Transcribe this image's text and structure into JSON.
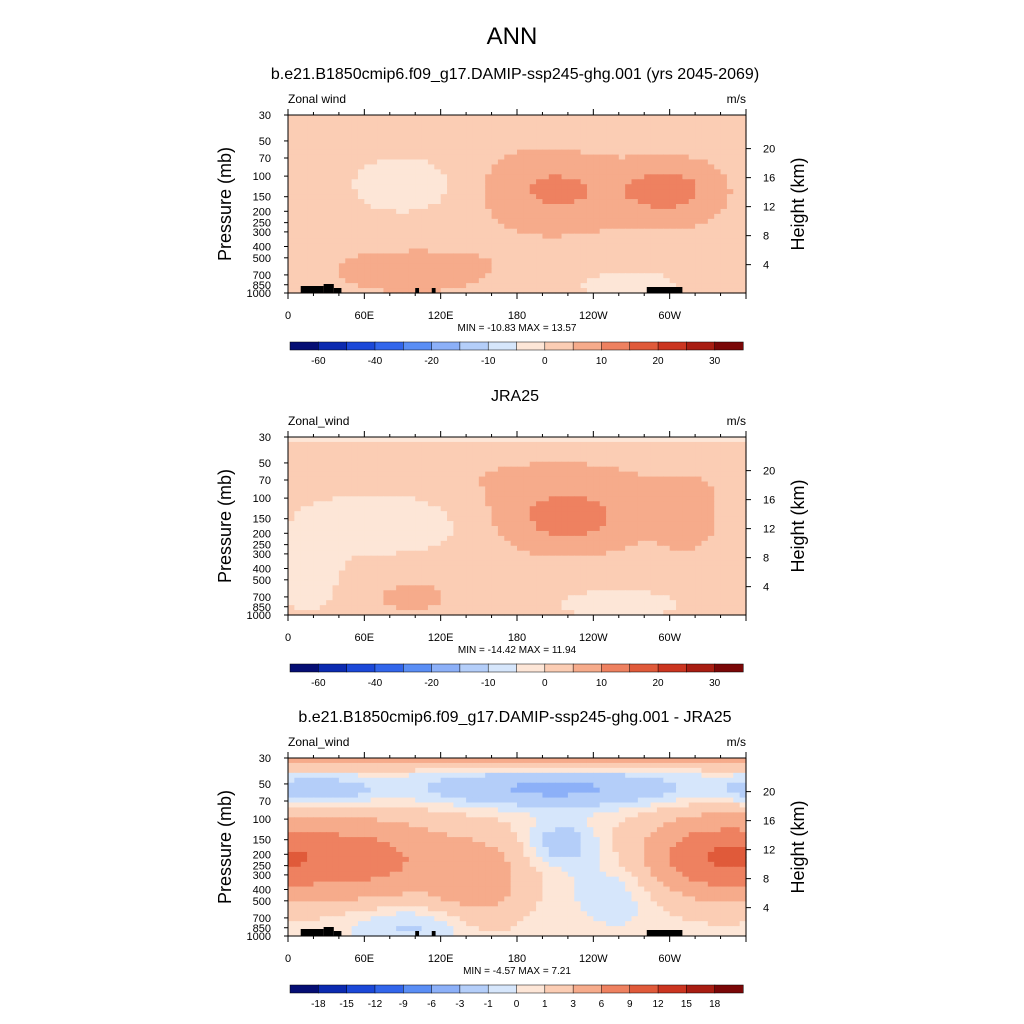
{
  "figure": {
    "title": "ANN"
  },
  "chart_data": [
    {
      "type": "heatmap",
      "title": "b.e21.B1850cmip6.f09_g17.DAMIP-ssp245-ghg.001 (yrs 2045-2069)",
      "left_label": "Zonal wind",
      "units": "m/s",
      "ylabel": "Pressure (mb)",
      "ylabel_right": "Height (km)",
      "xlim": [
        0,
        360
      ],
      "ylim": [
        1000,
        30
      ],
      "y_scale": "log",
      "x_ticks": [
        "0",
        "60E",
        "120E",
        "180",
        "120W",
        "60W"
      ],
      "y_ticks": [
        "30",
        "50",
        "70",
        "100",
        "150",
        "200",
        "250",
        "300",
        "400",
        "500",
        "700",
        "850",
        "1000"
      ],
      "height_ticks": [
        "20",
        "16",
        "12",
        "8",
        "4"
      ],
      "min_max": "MIN = -10.83  MAX =  13.57",
      "colorbar_labels": [
        "-60",
        "-40",
        "-20",
        "-10",
        "0",
        "10",
        "20",
        "30"
      ],
      "colorbar_levels": [
        -70,
        -60,
        -50,
        -40,
        -30,
        -20,
        -15,
        -10,
        -5,
        0,
        5,
        10,
        15,
        20,
        25,
        30,
        35
      ]
    },
    {
      "type": "heatmap",
      "title": "JRA25",
      "left_label": "Zonal_wind",
      "units": "m/s",
      "ylabel": "Pressure (mb)",
      "ylabel_right": "Height (km)",
      "xlim": [
        0,
        360
      ],
      "ylim": [
        1000,
        30
      ],
      "y_scale": "log",
      "x_ticks": [
        "0",
        "60E",
        "120E",
        "180",
        "120W",
        "60W"
      ],
      "y_ticks": [
        "30",
        "50",
        "70",
        "100",
        "150",
        "200",
        "250",
        "300",
        "400",
        "500",
        "700",
        "850",
        "1000"
      ],
      "height_ticks": [
        "20",
        "16",
        "12",
        "8",
        "4"
      ],
      "min_max": "MIN = -14.42  MAX =  11.94",
      "colorbar_labels": [
        "-60",
        "-40",
        "-20",
        "-10",
        "0",
        "10",
        "20",
        "30"
      ],
      "colorbar_levels": [
        -70,
        -60,
        -50,
        -40,
        -30,
        -20,
        -15,
        -10,
        -5,
        0,
        5,
        10,
        15,
        20,
        25,
        30,
        35
      ]
    },
    {
      "type": "heatmap",
      "title": "b.e21.B1850cmip6.f09_g17.DAMIP-ssp245-ghg.001 - JRA25",
      "left_label": "Zonal_wind",
      "units": "m/s",
      "ylabel": "Pressure (mb)",
      "ylabel_right": "Height (km)",
      "xlim": [
        0,
        360
      ],
      "ylim": [
        1000,
        30
      ],
      "y_scale": "log",
      "x_ticks": [
        "0",
        "60E",
        "120E",
        "180",
        "120W",
        "60W"
      ],
      "y_ticks": [
        "30",
        "50",
        "70",
        "100",
        "150",
        "200",
        "250",
        "300",
        "400",
        "500",
        "700",
        "850",
        "1000"
      ],
      "height_ticks": [
        "20",
        "16",
        "12",
        "8",
        "4"
      ],
      "min_max": "MIN =  -4.57  MAX =   7.21",
      "colorbar_labels": [
        "-18",
        "-15",
        "-12",
        "-9",
        "-6",
        "-3",
        "-1",
        "0",
        "1",
        "3",
        "6",
        "9",
        "12",
        "15",
        "18"
      ],
      "colorbar_levels": [
        -21,
        -18,
        -15,
        -12,
        -9,
        -6,
        -3,
        -1,
        0,
        1,
        3,
        6,
        9,
        12,
        15,
        18,
        21
      ]
    }
  ],
  "colorbar_colors": [
    "#050e74",
    "#0b2ab0",
    "#1b48d8",
    "#3266eb",
    "#5a8ef5",
    "#8cb0f8",
    "#b4cef9",
    "#d6e6fb",
    "#fde6d7",
    "#fbcdb4",
    "#f6ab8b",
    "#ee8160",
    "#e05a3a",
    "#cb3520",
    "#a81d12",
    "#7a0707"
  ]
}
